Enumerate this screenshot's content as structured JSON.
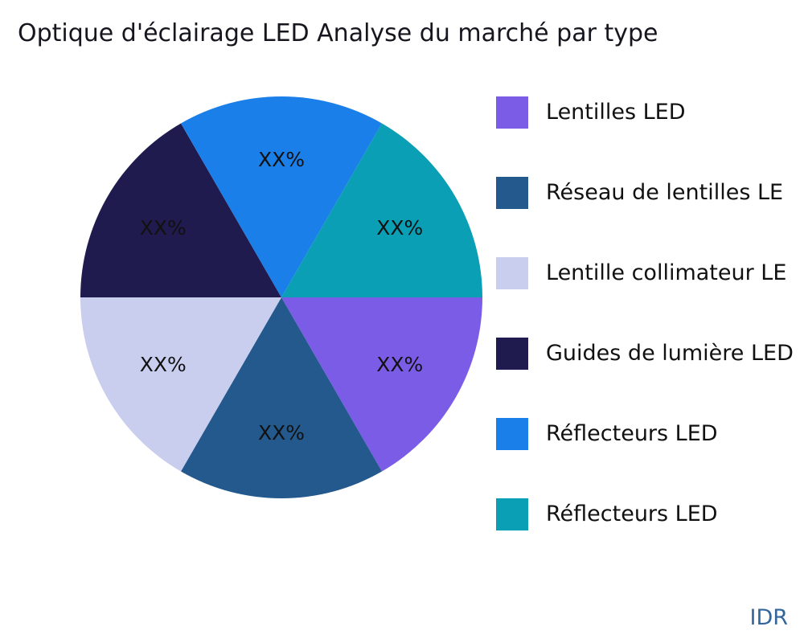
{
  "watermark": "IDR",
  "chart_data": {
    "type": "pie",
    "title": "Optique d'éclairage LED Analyse du marché par type",
    "start_angle_deg": 0,
    "direction": "clockwise",
    "legend_position": "right",
    "slices": [
      {
        "label": "Lentilles LED",
        "value_label": "XX%",
        "value": 16.67,
        "color": "#7b5ce6"
      },
      {
        "label": "Réseau de lentilles LE",
        "value_label": "XX%",
        "value": 16.67,
        "color": "#23598c"
      },
      {
        "label": "Lentille collimateur LE",
        "value_label": "XX%",
        "value": 16.67,
        "color": "#c9cdee"
      },
      {
        "label": "Guides de lumière LED",
        "value_label": "XX%",
        "value": 16.67,
        "color": "#1f1b4e"
      },
      {
        "label": "Réflecteurs LED",
        "value_label": "XX%",
        "value": 16.67,
        "color": "#1a7fe8"
      },
      {
        "label": "Réflecteurs LED",
        "value_label": "XX%",
        "value": 16.67,
        "color": "#0a9fb5"
      }
    ]
  }
}
